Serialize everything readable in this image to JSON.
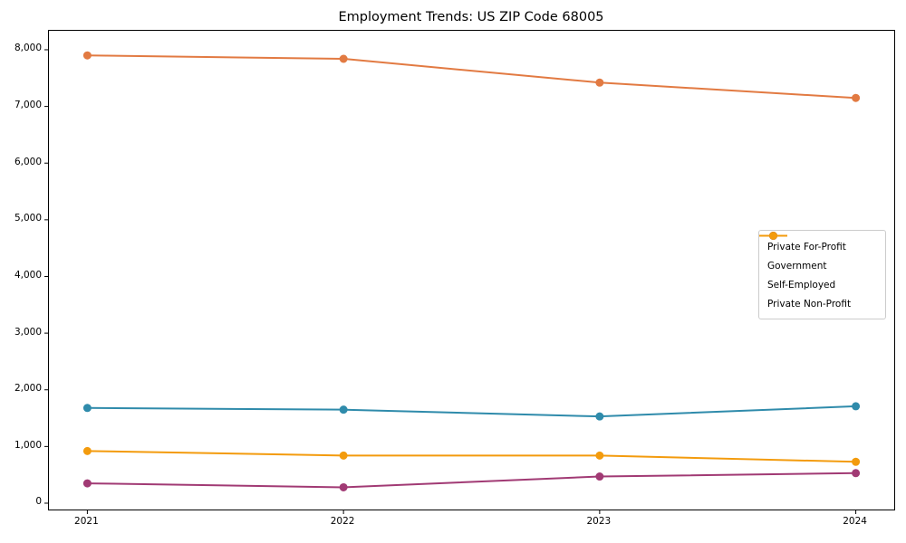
{
  "chart_data": {
    "type": "line",
    "title": "Employment Trends: US ZIP Code 68005",
    "x": [
      2021,
      2022,
      2023,
      2024
    ],
    "x_tick_labels": [
      "2021",
      "2022",
      "2023",
      "2024"
    ],
    "y_ticks": [
      0,
      1000,
      2000,
      3000,
      4000,
      5000,
      6000,
      7000,
      8000
    ],
    "y_tick_labels": [
      "0",
      "1,000",
      "2,000",
      "3,000",
      "4,000",
      "5,000",
      "6,000",
      "7,000",
      "8,000"
    ],
    "xlim": [
      2020.85,
      2024.15
    ],
    "ylim": [
      -112,
      8335
    ],
    "grid": false,
    "legend_position": "center right",
    "marker": "circle",
    "series": [
      {
        "name": "Private For-Profit",
        "color": "#e27a42",
        "values": [
          7900,
          7840,
          7420,
          7150
        ]
      },
      {
        "name": "Government",
        "color": "#2f8bab",
        "values": [
          1680,
          1650,
          1530,
          1710
        ]
      },
      {
        "name": "Self-Employed",
        "color": "#a13a74",
        "values": [
          350,
          280,
          470,
          530
        ]
      },
      {
        "name": "Private Non-Profit",
        "color": "#f39b0d",
        "values": [
          920,
          840,
          840,
          730
        ]
      }
    ]
  }
}
